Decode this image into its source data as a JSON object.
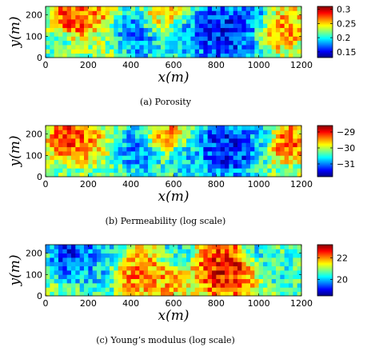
{
  "chart_data": [
    {
      "type": "heatmap",
      "caption": "(a) Porosity",
      "xlabel": "x(m)",
      "ylabel": "y(m)",
      "xlim": [
        0,
        1200
      ],
      "ylim": [
        0,
        240
      ],
      "xticks": [
        0,
        200,
        400,
        600,
        800,
        1000,
        1200
      ],
      "yticks": [
        0,
        100,
        200
      ],
      "colorbar": {
        "min": 0.13,
        "max": 0.31,
        "ticks": [
          0.15,
          0.2,
          0.25,
          0.3
        ],
        "tick_labels": [
          "0.15",
          "0.2",
          "0.25",
          "0.3"
        ]
      },
      "grid": {
        "nx": 60,
        "ny": 12
      },
      "features": [
        {
          "x": 140,
          "y": 200,
          "r": 75,
          "level": 0.9
        },
        {
          "x": 250,
          "y": 210,
          "r": 55,
          "level": 0.75
        },
        {
          "x": 420,
          "y": 100,
          "r": 90,
          "level": 0.18
        },
        {
          "x": 540,
          "y": 190,
          "r": 70,
          "level": 0.7
        },
        {
          "x": 640,
          "y": 100,
          "r": 60,
          "level": 0.25
        },
        {
          "x": 840,
          "y": 120,
          "r": 120,
          "level": 0.05
        },
        {
          "x": 1020,
          "y": 200,
          "r": 60,
          "level": 0.25
        },
        {
          "x": 1100,
          "y": 150,
          "r": 80,
          "level": 0.82
        },
        {
          "x": 300,
          "y": 40,
          "r": 60,
          "level": 0.55
        },
        {
          "x": 60,
          "y": 60,
          "r": 50,
          "level": 0.45
        }
      ]
    },
    {
      "type": "heatmap",
      "caption": "(b) Permeability (log scale)",
      "xlabel": "x(m)",
      "ylabel": "y(m)",
      "xlim": [
        0,
        1200
      ],
      "ylim": [
        0,
        240
      ],
      "xticks": [
        0,
        200,
        400,
        600,
        800,
        1000,
        1200
      ],
      "yticks": [
        0,
        100,
        200
      ],
      "colorbar": {
        "min": -31.8,
        "max": -28.6,
        "ticks": [
          -31,
          -30,
          -29
        ],
        "tick_labels": [
          "−31",
          "−30",
          "−29"
        ]
      },
      "grid": {
        "nx": 60,
        "ny": 12
      },
      "features": [
        {
          "x": 120,
          "y": 190,
          "r": 80,
          "level": 0.92
        },
        {
          "x": 230,
          "y": 150,
          "r": 60,
          "level": 0.7
        },
        {
          "x": 420,
          "y": 120,
          "r": 85,
          "level": 0.22
        },
        {
          "x": 560,
          "y": 200,
          "r": 70,
          "level": 0.78
        },
        {
          "x": 650,
          "y": 80,
          "r": 70,
          "level": 0.3
        },
        {
          "x": 850,
          "y": 130,
          "r": 110,
          "level": 0.06
        },
        {
          "x": 1000,
          "y": 200,
          "r": 60,
          "level": 0.3
        },
        {
          "x": 1130,
          "y": 170,
          "r": 70,
          "level": 0.85
        },
        {
          "x": 300,
          "y": 40,
          "r": 60,
          "level": 0.5
        }
      ]
    },
    {
      "type": "heatmap",
      "caption": "(c) Young’s modulus (log scale)",
      "xlabel": "x(m)",
      "ylabel": "y(m)",
      "xlim": [
        0,
        1200
      ],
      "ylim": [
        0,
        240
      ],
      "xticks": [
        0,
        200,
        400,
        600,
        800,
        1000,
        1200
      ],
      "yticks": [
        0,
        100,
        200
      ],
      "colorbar": {
        "min": 18.5,
        "max": 23.2,
        "ticks": [
          20,
          22
        ],
        "tick_labels": [
          "20",
          "22"
        ]
      },
      "grid": {
        "nx": 60,
        "ny": 12
      },
      "features": [
        {
          "x": 130,
          "y": 190,
          "r": 80,
          "level": 0.08
        },
        {
          "x": 250,
          "y": 90,
          "r": 70,
          "level": 0.3
        },
        {
          "x": 420,
          "y": 120,
          "r": 90,
          "level": 0.8
        },
        {
          "x": 560,
          "y": 70,
          "r": 70,
          "level": 0.75
        },
        {
          "x": 620,
          "y": 200,
          "r": 60,
          "level": 0.35
        },
        {
          "x": 840,
          "y": 130,
          "r": 110,
          "level": 0.95
        },
        {
          "x": 1000,
          "y": 210,
          "r": 60,
          "level": 0.3
        },
        {
          "x": 1120,
          "y": 110,
          "r": 80,
          "level": 0.4
        },
        {
          "x": 300,
          "y": 200,
          "r": 60,
          "level": 0.25
        }
      ]
    }
  ]
}
